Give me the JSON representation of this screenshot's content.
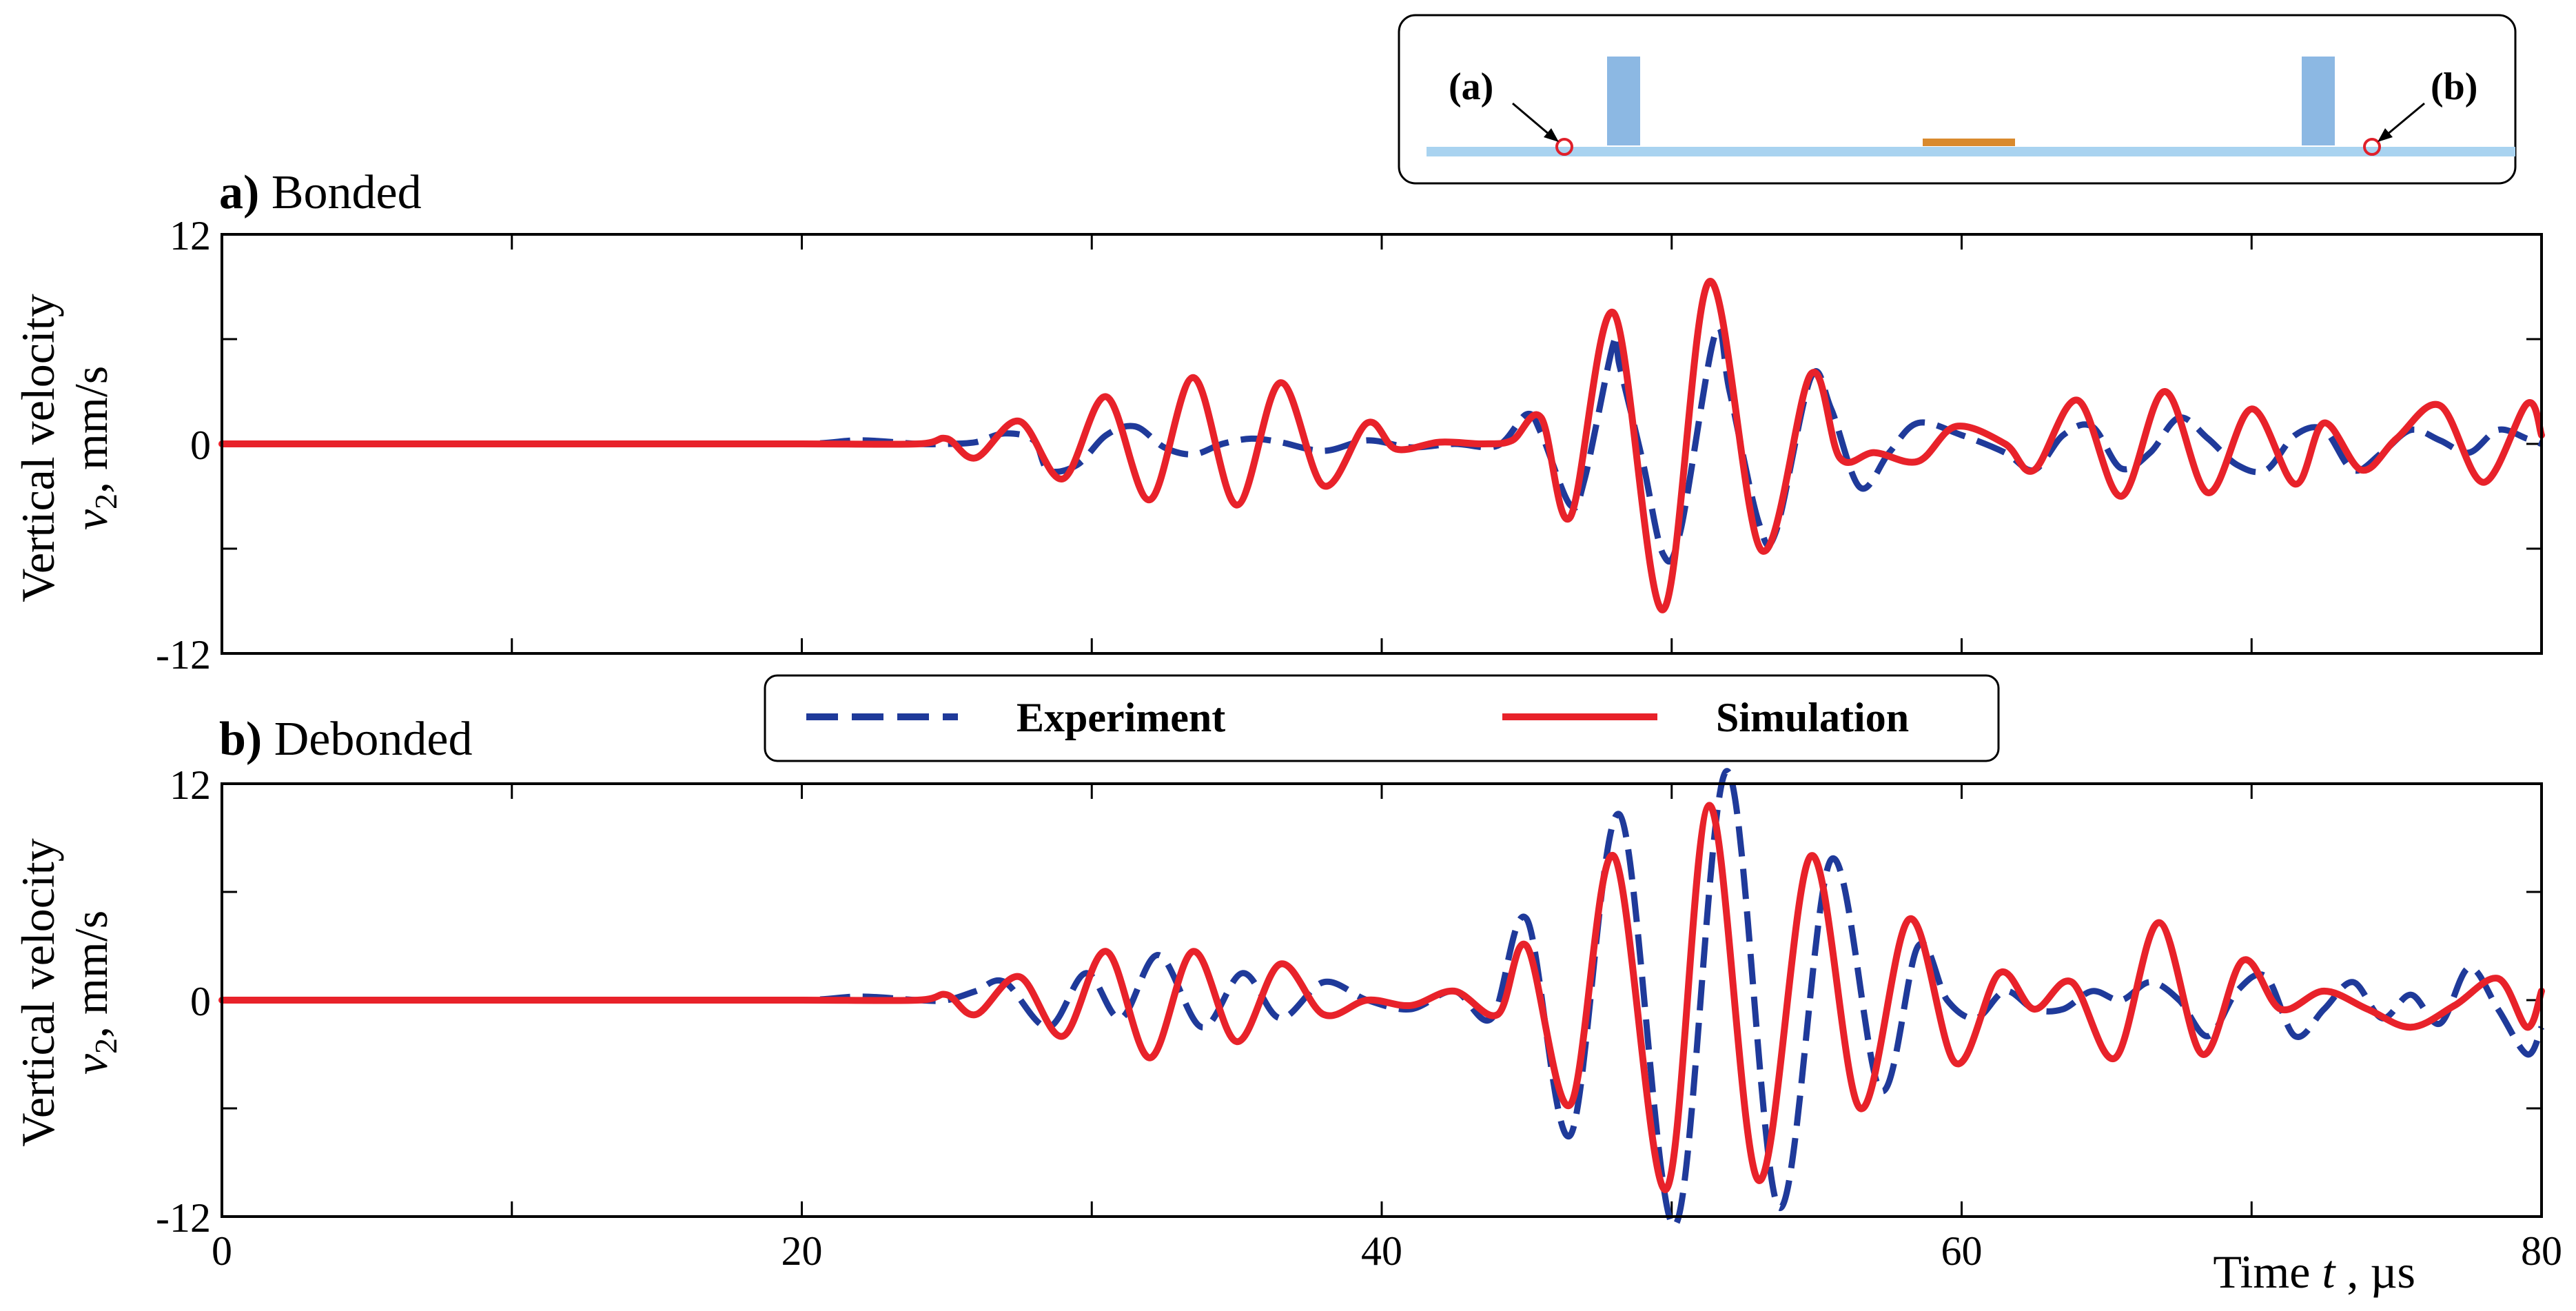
{
  "chart_data": [
    {
      "type": "line",
      "title_letter": "a)",
      "title_text": " Bonded",
      "xlabel_main": "Time ",
      "xlabel_var": "t",
      "xlabel_unit": " , µs",
      "ylabel_line1": "Vertical velocity",
      "ylabel_var": "v",
      "ylabel_sub": "2",
      "ylabel_unit": ", mm/s",
      "xlim": [
        0,
        80
      ],
      "ylim": [
        -12,
        12
      ],
      "xticks": [
        0,
        20,
        40,
        60,
        80
      ],
      "yticks": [
        -12,
        0,
        12
      ],
      "yticks_unlabeled": [
        -6,
        6
      ],
      "series": [
        {
          "name": "Experiment",
          "style": "dashed",
          "color": "#1f3a9a",
          "points": [
            [
              0,
              0
            ],
            [
              5,
              0
            ],
            [
              10,
              0
            ],
            [
              15,
              0
            ],
            [
              20,
              0
            ],
            [
              22,
              0.2
            ],
            [
              24,
              0
            ],
            [
              25,
              0
            ],
            [
              26,
              0.1
            ],
            [
              27,
              0.6
            ],
            [
              28,
              0.2
            ],
            [
              28.5,
              -1.5
            ],
            [
              29.5,
              -1.2
            ],
            [
              30.5,
              0.5
            ],
            [
              31.5,
              1.0
            ],
            [
              32.5,
              -0.2
            ],
            [
              33.5,
              -0.6
            ],
            [
              34.5,
              0
            ],
            [
              35.5,
              0.3
            ],
            [
              36.5,
              0.1
            ],
            [
              38,
              -0.4
            ],
            [
              39.5,
              0.2
            ],
            [
              41,
              -0.2
            ],
            [
              42.5,
              0
            ],
            [
              44,
              -0.1
            ],
            [
              45,
              1.7
            ],
            [
              45.5,
              0.6
            ],
            [
              46.5,
              -3.5
            ],
            [
              47,
              -2
            ],
            [
              48,
              5.8
            ],
            [
              48.2,
              4.5
            ],
            [
              49,
              -1
            ],
            [
              49.7,
              -6.3
            ],
            [
              50.3,
              -5
            ],
            [
              51.5,
              6.3
            ],
            [
              52,
              3
            ],
            [
              53,
              -4.5
            ],
            [
              53.6,
              -5
            ],
            [
              54.8,
              3.8
            ],
            [
              55.5,
              2
            ],
            [
              56.5,
              -2.5
            ],
            [
              57.5,
              -0.5
            ],
            [
              58.5,
              1.2
            ],
            [
              60,
              0.5
            ],
            [
              61.5,
              -0.5
            ],
            [
              62.5,
              -1.5
            ],
            [
              63.5,
              0.5
            ],
            [
              64.5,
              1.0
            ],
            [
              65.5,
              -1.4
            ],
            [
              66.5,
              -0.5
            ],
            [
              67.5,
              1.5
            ],
            [
              68.5,
              0.3
            ],
            [
              69.5,
              -1.2
            ],
            [
              70.5,
              -1.5
            ],
            [
              71.5,
              0.5
            ],
            [
              72.5,
              0.8
            ],
            [
              73.5,
              -1.5
            ],
            [
              74.5,
              -0.5
            ],
            [
              75.5,
              0.8
            ],
            [
              76.5,
              0.2
            ],
            [
              77.5,
              -0.5
            ],
            [
              78.5,
              0.8
            ],
            [
              79.5,
              0.3
            ],
            [
              80,
              0
            ]
          ]
        },
        {
          "name": "Simulation",
          "style": "solid",
          "color": "#e8222a",
          "points": [
            [
              0,
              0
            ],
            [
              5,
              0
            ],
            [
              10,
              0
            ],
            [
              15,
              0
            ],
            [
              20,
              0
            ],
            [
              24,
              0
            ],
            [
              25,
              0.3
            ],
            [
              26,
              -0.8
            ],
            [
              27.5,
              1.3
            ],
            [
              29,
              -2.0
            ],
            [
              30.5,
              2.7
            ],
            [
              32,
              -3.2
            ],
            [
              33.5,
              3.8
            ],
            [
              35,
              -3.5
            ],
            [
              36.5,
              3.5
            ],
            [
              38,
              -2.4
            ],
            [
              39.5,
              1.2
            ],
            [
              40.5,
              -0.3
            ],
            [
              42,
              0.1
            ],
            [
              43.5,
              0
            ],
            [
              44.5,
              0.2
            ],
            [
              45.5,
              1.5
            ],
            [
              46.5,
              -4.2
            ],
            [
              48,
              7.5
            ],
            [
              49.7,
              -9.5
            ],
            [
              51.3,
              9.3
            ],
            [
              53.1,
              -6.1
            ],
            [
              54.8,
              4
            ],
            [
              55.8,
              -0.8
            ],
            [
              57,
              -0.5
            ],
            [
              58.5,
              -1.0
            ],
            [
              59.8,
              1.0
            ],
            [
              61.5,
              0
            ],
            [
              62.5,
              -1.5
            ],
            [
              64,
              2.5
            ],
            [
              65.5,
              -3.0
            ],
            [
              67,
              3.0
            ],
            [
              68.5,
              -2.8
            ],
            [
              70,
              2.0
            ],
            [
              71.5,
              -2.3
            ],
            [
              72.5,
              1.2
            ],
            [
              73.8,
              -1.5
            ],
            [
              75,
              0.3
            ],
            [
              76.5,
              2.2
            ],
            [
              78,
              -2.2
            ],
            [
              79.5,
              2.3
            ],
            [
              80,
              0.5
            ]
          ]
        }
      ]
    },
    {
      "type": "line",
      "title_letter": "b)",
      "title_text": " Debonded",
      "xlabel_main": "Time ",
      "xlabel_var": "t",
      "xlabel_unit": " , µs",
      "ylabel_line1": "Vertical velocity",
      "ylabel_var": "v",
      "ylabel_sub": "2",
      "ylabel_unit": ", mm/s",
      "xlim": [
        0,
        80
      ],
      "ylim": [
        -12,
        12
      ],
      "xticks": [
        0,
        20,
        40,
        60,
        80
      ],
      "yticks": [
        -12,
        0,
        12
      ],
      "yticks_unlabeled": [
        -6,
        6
      ],
      "series": [
        {
          "name": "Experiment",
          "style": "dashed",
          "color": "#1f3a9a",
          "points": [
            [
              0,
              0
            ],
            [
              5,
              0
            ],
            [
              10,
              0
            ],
            [
              15,
              0
            ],
            [
              20,
              0
            ],
            [
              22,
              0.2
            ],
            [
              24,
              0
            ],
            [
              25,
              0
            ],
            [
              26,
              0.5
            ],
            [
              27,
              1.0
            ],
            [
              28.5,
              -1.5
            ],
            [
              29.8,
              1.5
            ],
            [
              31,
              -1.0
            ],
            [
              32.3,
              2.5
            ],
            [
              33.8,
              -1.5
            ],
            [
              35.2,
              1.5
            ],
            [
              36.5,
              -1.0
            ],
            [
              38,
              1.0
            ],
            [
              39.5,
              0
            ],
            [
              41,
              -0.5
            ],
            [
              42.5,
              0.5
            ],
            [
              43.8,
              -1.0
            ],
            [
              45,
              4.5
            ],
            [
              46.5,
              -7.5
            ],
            [
              48.2,
              10.3
            ],
            [
              50.1,
              -12.5
            ],
            [
              51.9,
              12.7
            ],
            [
              53.7,
              -11.5
            ],
            [
              55.5,
              7.8
            ],
            [
              57.2,
              -5.0
            ],
            [
              58.5,
              3.0
            ],
            [
              59.5,
              0
            ],
            [
              60.5,
              -1.0
            ],
            [
              61.5,
              0.5
            ],
            [
              62.5,
              -0.5
            ],
            [
              63.5,
              -0.5
            ],
            [
              64.5,
              0.5
            ],
            [
              65.5,
              0
            ],
            [
              66.5,
              1.0
            ],
            [
              67.5,
              0
            ],
            [
              68.5,
              -2.0
            ],
            [
              69.5,
              0.5
            ],
            [
              70.5,
              1.3
            ],
            [
              71.5,
              -2.0
            ],
            [
              72.5,
              -0.5
            ],
            [
              73.5,
              1.0
            ],
            [
              74.5,
              -1.0
            ],
            [
              75.5,
              0.3
            ],
            [
              76.5,
              -1.3
            ],
            [
              77.5,
              1.8
            ],
            [
              78.5,
              -0.5
            ],
            [
              79.5,
              -3.0
            ],
            [
              80,
              -1.5
            ]
          ]
        },
        {
          "name": "Simulation",
          "style": "solid",
          "color": "#e8222a",
          "points": [
            [
              0,
              0
            ],
            [
              5,
              0
            ],
            [
              10,
              0
            ],
            [
              15,
              0
            ],
            [
              20,
              0
            ],
            [
              24,
              0
            ],
            [
              25,
              0.3
            ],
            [
              26,
              -0.8
            ],
            [
              27.5,
              1.3
            ],
            [
              29,
              -2.0
            ],
            [
              30.5,
              2.7
            ],
            [
              32,
              -3.2
            ],
            [
              33.5,
              2.7
            ],
            [
              35,
              -2.3
            ],
            [
              36.5,
              2.0
            ],
            [
              38,
              -0.8
            ],
            [
              39.5,
              0
            ],
            [
              41,
              -0.3
            ],
            [
              42.5,
              0.5
            ],
            [
              44,
              -0.8
            ],
            [
              45,
              3.0
            ],
            [
              46.5,
              -5.8
            ],
            [
              48,
              8.0
            ],
            [
              49.8,
              -10.5
            ],
            [
              51.3,
              10.8
            ],
            [
              53,
              -10.0
            ],
            [
              54.8,
              8.0
            ],
            [
              56.5,
              -6.0
            ],
            [
              58.2,
              4.5
            ],
            [
              59.8,
              -3.5
            ],
            [
              61.3,
              1.5
            ],
            [
              62.5,
              -0.5
            ],
            [
              63.8,
              1.0
            ],
            [
              65.3,
              -3.2
            ],
            [
              66.8,
              4.3
            ],
            [
              68.3,
              -3.0
            ],
            [
              69.7,
              2.2
            ],
            [
              71,
              -0.5
            ],
            [
              72.5,
              0.5
            ],
            [
              74,
              -0.5
            ],
            [
              75.5,
              -1.5
            ],
            [
              77,
              -0.3
            ],
            [
              78.5,
              1.2
            ],
            [
              79.5,
              -1.5
            ],
            [
              80,
              0.5
            ]
          ]
        }
      ]
    }
  ],
  "legend": {
    "entries": [
      {
        "label": "Experiment",
        "color": "#1f3a9a",
        "style": "dashed"
      },
      {
        "label": "Simulation",
        "color": "#e8222a",
        "style": "solid"
      }
    ]
  },
  "schematic": {
    "label_a": "(a)",
    "label_b": "(b)",
    "plate_color": "#a9d3f0",
    "actuator_color": "#8cb8e3",
    "patch_color": "#d98a2e",
    "point_color": "#e0202a"
  },
  "colors": {
    "axis": "#000000",
    "experiment": "#1f3a9a",
    "simulation": "#e8222a"
  }
}
